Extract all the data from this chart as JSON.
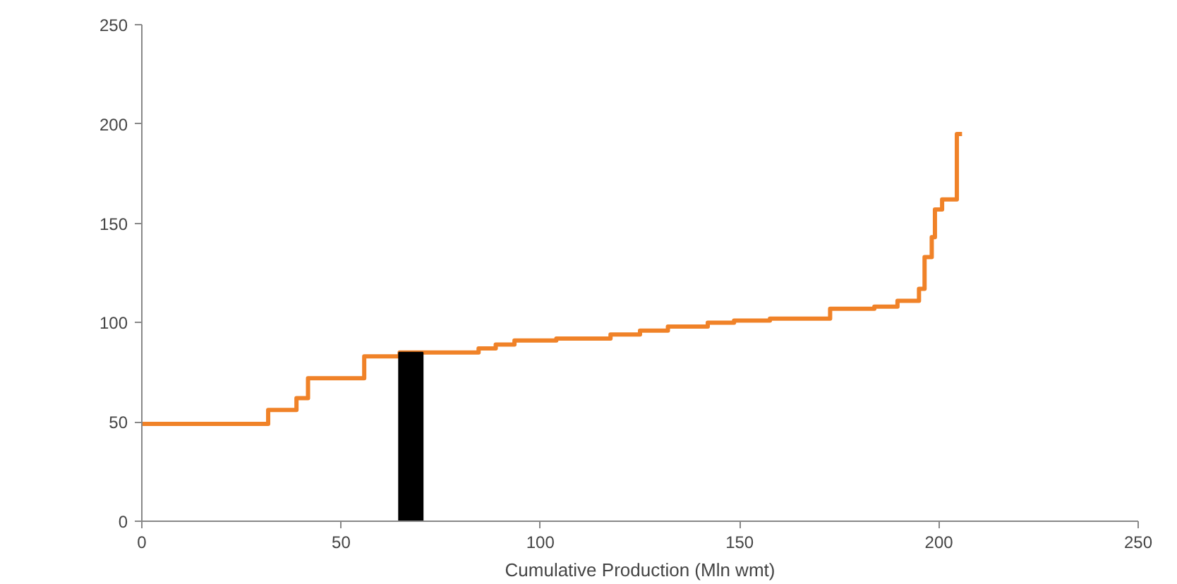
{
  "chart_data": {
    "type": "step",
    "xlabel": "Cumulative Production (Mln wmt)",
    "xlim": [
      0,
      250
    ],
    "ylim": [
      0,
      250
    ],
    "xticks": [
      0,
      50,
      100,
      150,
      200,
      250
    ],
    "yticks": [
      0,
      50,
      100,
      150,
      200,
      250
    ],
    "grid": false,
    "series": [
      {
        "color": "#f08228",
        "x": [
          0,
          31.7,
          38.8,
          41.7,
          55.8,
          64.7,
          84.5,
          88.8,
          93.5,
          104,
          117.6,
          125,
          132,
          142,
          148.6,
          157.6,
          172.7,
          183.8,
          189.6,
          195,
          196.4,
          198.2,
          199,
          200.8,
          204.5,
          205.8
        ],
        "values": [
          49,
          56,
          62,
          72,
          83,
          85,
          87,
          89,
          91,
          92,
          94,
          96,
          98,
          100,
          101,
          102,
          107,
          108,
          111,
          117,
          133,
          143,
          157,
          162,
          195,
          195
        ]
      },
      {
        "type": "bar",
        "color": "#000000",
        "x": [
          67.5
        ],
        "values": [
          85
        ]
      }
    ]
  }
}
